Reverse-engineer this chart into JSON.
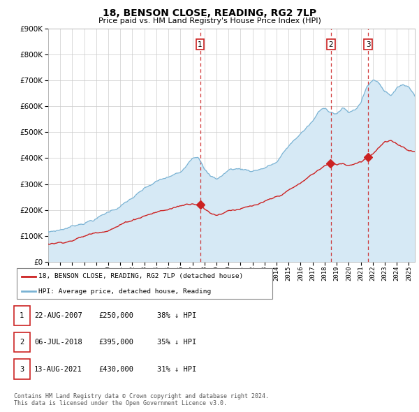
{
  "title": "18, BENSON CLOSE, READING, RG2 7LP",
  "subtitle": "Price paid vs. HM Land Registry's House Price Index (HPI)",
  "ylim": [
    0,
    900000
  ],
  "yticks": [
    0,
    100000,
    200000,
    300000,
    400000,
    500000,
    600000,
    700000,
    800000,
    900000
  ],
  "xlim_start": 1995.0,
  "xlim_end": 2025.5,
  "sale_dates": [
    2007.64,
    2018.51,
    2021.62
  ],
  "sale_prices": [
    250000,
    395000,
    430000
  ],
  "sale_labels": [
    "1",
    "2",
    "3"
  ],
  "legend_entries": [
    "18, BENSON CLOSE, READING, RG2 7LP (detached house)",
    "HPI: Average price, detached house, Reading"
  ],
  "table_rows": [
    [
      "1",
      "22-AUG-2007",
      "£250,000",
      "38% ↓ HPI"
    ],
    [
      "2",
      "06-JUL-2018",
      "£395,000",
      "35% ↓ HPI"
    ],
    [
      "3",
      "13-AUG-2021",
      "£430,000",
      "31% ↓ HPI"
    ]
  ],
  "footnote": "Contains HM Land Registry data © Crown copyright and database right 2024.\nThis data is licensed under the Open Government Licence v3.0.",
  "hpi_color": "#7ab3d4",
  "hpi_fill_color": "#d6e9f5",
  "price_color": "#cc2222",
  "background_color": "#ffffff",
  "grid_color": "#cccccc",
  "hpi_base_knots": [
    1995.0,
    1996.0,
    1997.0,
    1998.0,
    1999.0,
    2000.0,
    2001.0,
    2002.0,
    2003.0,
    2004.0,
    2005.0,
    2006.0,
    2007.0,
    2007.5,
    2008.0,
    2008.5,
    2009.0,
    2009.5,
    2010.0,
    2010.5,
    2011.0,
    2012.0,
    2013.0,
    2014.0,
    2015.0,
    2016.0,
    2017.0,
    2017.5,
    2018.0,
    2018.5,
    2019.0,
    2019.5,
    2020.0,
    2020.5,
    2021.0,
    2021.5,
    2022.0,
    2022.5,
    2023.0,
    2023.5,
    2024.0,
    2024.5,
    2025.0,
    2025.5
  ],
  "hpi_base_vals": [
    115000,
    125000,
    140000,
    158000,
    175000,
    200000,
    225000,
    255000,
    285000,
    310000,
    325000,
    340000,
    410000,
    420000,
    370000,
    340000,
    330000,
    345000,
    365000,
    370000,
    370000,
    365000,
    380000,
    400000,
    460000,
    510000,
    555000,
    590000,
    605000,
    595000,
    590000,
    610000,
    590000,
    600000,
    630000,
    690000,
    720000,
    710000,
    680000,
    670000,
    690000,
    710000,
    700000,
    670000
  ],
  "price_base_knots": [
    1995.0,
    1996.0,
    1997.0,
    1998.0,
    1999.0,
    2000.0,
    2001.0,
    2002.0,
    2003.0,
    2004.0,
    2005.0,
    2006.0,
    2007.0,
    2007.64,
    2008.0,
    2008.5,
    2009.0,
    2009.5,
    2010.0,
    2011.0,
    2012.0,
    2013.0,
    2014.0,
    2015.0,
    2016.0,
    2017.0,
    2018.0,
    2018.51,
    2019.0,
    2019.5,
    2020.0,
    2020.5,
    2021.0,
    2021.62,
    2022.0,
    2022.5,
    2023.0,
    2023.5,
    2024.0,
    2024.5,
    2025.0,
    2025.5
  ],
  "price_base_vals": [
    68000,
    75000,
    88000,
    103000,
    118000,
    135000,
    155000,
    175000,
    195000,
    210000,
    220000,
    235000,
    248000,
    250000,
    230000,
    215000,
    208000,
    218000,
    230000,
    240000,
    245000,
    255000,
    270000,
    295000,
    320000,
    355000,
    388000,
    395000,
    390000,
    395000,
    390000,
    400000,
    410000,
    430000,
    445000,
    470000,
    490000,
    490000,
    480000,
    470000,
    460000,
    455000
  ]
}
